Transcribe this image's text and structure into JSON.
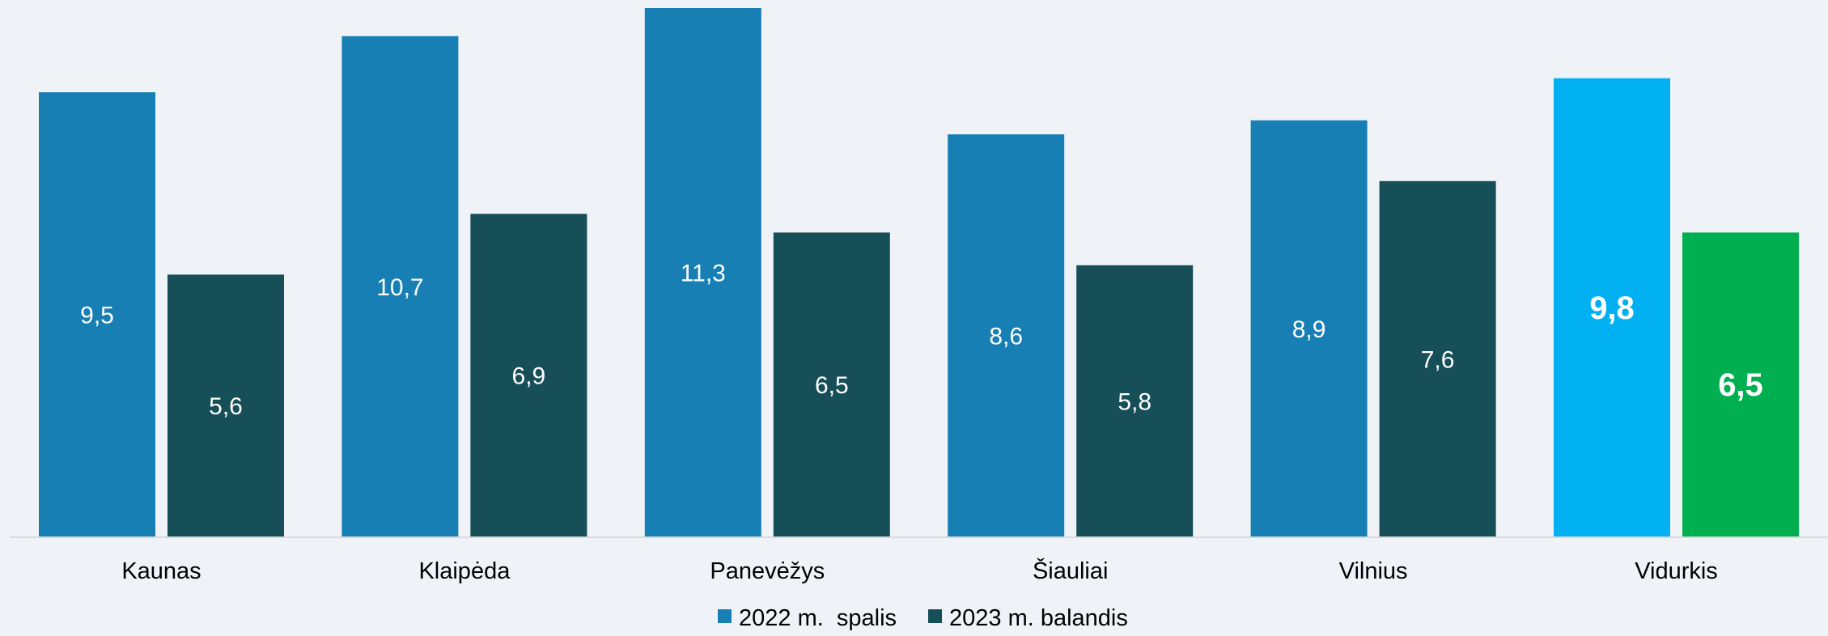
{
  "chart_data": {
    "type": "bar",
    "categories": [
      "Kaunas",
      "Klaipėda",
      "Panevėžys",
      "Šiauliai",
      "Vilnius",
      "Vidurkis"
    ],
    "series": [
      {
        "name": "2022 m.  spalis",
        "color": "#177fb4",
        "values": [
          9.5,
          10.7,
          11.3,
          8.6,
          8.9,
          9.8
        ],
        "labels": [
          "9,5",
          "10,7",
          "11,3",
          "8,6",
          "8,9",
          "9,8"
        ]
      },
      {
        "name": "2023 m. balandis",
        "color": "#174f59",
        "values": [
          5.6,
          6.9,
          6.5,
          5.8,
          7.6,
          6.5
        ],
        "labels": [
          "5,6",
          "6,9",
          "6,5",
          "5,8",
          "7,6",
          "6,5"
        ]
      }
    ],
    "highlight": {
      "category": "Vidurkis",
      "colors": [
        "#00b0f0",
        "#00b050"
      ]
    },
    "ylim": [
      0,
      11.3
    ],
    "grid": false,
    "legend_position": "bottom"
  }
}
